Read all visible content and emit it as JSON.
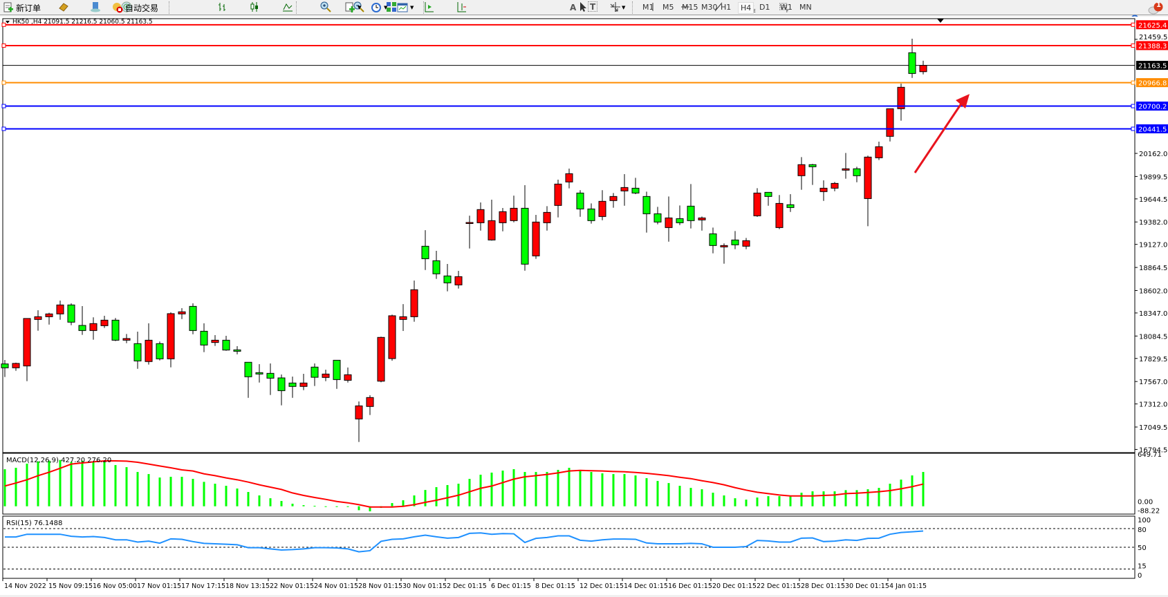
{
  "toolbar": {
    "new_order": "新订单",
    "auto_trading": "自动交易",
    "timeframes": [
      "M1",
      "M5",
      "M15",
      "M30",
      "H1",
      "H4",
      "D1",
      "W1",
      "MN"
    ],
    "active_timeframe": "H4",
    "notification_count": "1",
    "tools": {
      "text_label": "A",
      "text_box": "T"
    }
  },
  "chart": {
    "header": "HK50 ,H4  21091.5 21216.5 21060.5 21163.5",
    "colors": {
      "bull": "#ff0000",
      "bear": "#00ff00",
      "red_line": "#ff0000",
      "orange_line": "#ff8c00",
      "blue_line": "#0000ff"
    },
    "price_axis": [
      "21459.5",
      "20162.0",
      "19899.5",
      "19644.5",
      "19382.0",
      "19127.0",
      "18864.5",
      "18602.0",
      "18347.0",
      "18084.5",
      "17829.5",
      "17567.0",
      "17312.0",
      "17049.5",
      "16794.5"
    ],
    "price_axis_values": [
      21459.5,
      20162.0,
      19899.5,
      19644.5,
      19382.0,
      19127.0,
      18864.5,
      18602.0,
      18347.0,
      18084.5,
      17829.5,
      17567.0,
      17312.0,
      17049.5,
      16794.5
    ],
    "current_price": {
      "label": "21163.5",
      "value": 21163.5
    },
    "levels": [
      {
        "label": "21625.4",
        "value": 21625.4,
        "color": "#ff0000"
      },
      {
        "label": "21388.3",
        "value": 21388.3,
        "color": "#ff0000"
      },
      {
        "label": "20966.8",
        "value": 20966.8,
        "color": "#ff8c00"
      },
      {
        "label": "20700.2",
        "value": 20700.2,
        "color": "#0000ff"
      },
      {
        "label": "20441.5",
        "value": 20441.5,
        "color": "#0000ff"
      }
    ],
    "time_labels": [
      "14 Nov 2022",
      "15 Nov 09:15",
      "16 Nov 05:00",
      "17 Nov 01:15",
      "17 Nov 17:15",
      "18 Nov 13:15",
      "22 Nov 01:15",
      "24 Nov 01:15",
      "28 Nov 01:15",
      "30 Nov 01:15",
      "2 Dec 01:15",
      "6 Dec 01:15",
      "8 Dec 01:15",
      "12 Dec 01:15",
      "14 Dec 01:15",
      "16 Dec 01:15",
      "20 Dec 01:15",
      "22 Dec 01:15",
      "28 Dec 01:15",
      "30 Dec 01:15",
      "4 Jan 01:15"
    ],
    "candles_ohlc": [
      [
        17767,
        17812,
        17618,
        17723
      ],
      [
        17723,
        17781,
        17689,
        17773
      ],
      [
        17744,
        18284,
        17571,
        18284
      ],
      [
        18273,
        18378,
        18145,
        18304
      ],
      [
        18304,
        18349,
        18215,
        18336
      ],
      [
        18336,
        18488,
        18270,
        18438
      ],
      [
        18438,
        18456,
        18208,
        18242
      ],
      [
        18205,
        18425,
        18098,
        18147
      ],
      [
        18147,
        18297,
        18043,
        18226
      ],
      [
        18202,
        18315,
        18176,
        18265
      ],
      [
        18265,
        18289,
        18027,
        18037
      ],
      [
        18037,
        18108,
        18003,
        18056
      ],
      [
        17998,
        18134,
        17712,
        17801
      ],
      [
        17794,
        18229,
        17760,
        18037
      ],
      [
        17998,
        18022,
        17807,
        17825
      ],
      [
        17825,
        18354,
        17728,
        18339
      ],
      [
        18336,
        18401,
        18278,
        18360
      ],
      [
        18422,
        18456,
        18105,
        18147
      ],
      [
        18139,
        18229,
        17901,
        17982
      ],
      [
        18011,
        18095,
        17972,
        18037
      ],
      [
        18037,
        18087,
        17917,
        17925
      ],
      [
        17927,
        17969,
        17877,
        17911
      ],
      [
        17786,
        17786,
        17382,
        17621
      ],
      [
        17668,
        17765,
        17555,
        17652
      ],
      [
        17660,
        17773,
        17414,
        17605
      ],
      [
        17608,
        17647,
        17296,
        17463
      ],
      [
        17550,
        17623,
        17382,
        17511
      ],
      [
        17511,
        17655,
        17469,
        17550
      ],
      [
        17731,
        17773,
        17516,
        17615
      ],
      [
        17613,
        17702,
        17571,
        17652
      ],
      [
        17809,
        17809,
        17484,
        17589
      ],
      [
        17581,
        17726,
        17555,
        17644
      ],
      [
        17141,
        17340,
        16879,
        17290
      ],
      [
        17283,
        17411,
        17186,
        17385
      ],
      [
        17571,
        18077,
        17558,
        18069
      ],
      [
        17828,
        18328,
        17804,
        18315
      ],
      [
        18273,
        18448,
        18142,
        18304
      ],
      [
        18304,
        18716,
        18247,
        18611
      ],
      [
        19106,
        19289,
        18836,
        18964
      ],
      [
        18941,
        19054,
        18734,
        18792
      ],
      [
        18768,
        18904,
        18593,
        18689
      ],
      [
        18666,
        18826,
        18624,
        18760
      ],
      [
        19370,
        19454,
        19080,
        19376
      ],
      [
        19373,
        19604,
        19284,
        19523
      ],
      [
        19177,
        19635,
        19170,
        19397
      ],
      [
        19373,
        19541,
        19276,
        19499
      ],
      [
        19397,
        19682,
        19378,
        19538
      ],
      [
        19538,
        19800,
        18828,
        18902
      ],
      [
        18996,
        19462,
        18962,
        19381
      ],
      [
        19373,
        19562,
        19284,
        19491
      ],
      [
        19570,
        19863,
        19434,
        19813
      ],
      [
        19837,
        19989,
        19764,
        19931
      ],
      [
        19711,
        19743,
        19441,
        19530
      ],
      [
        19530,
        19593,
        19363,
        19397
      ],
      [
        19444,
        19743,
        19402,
        19617
      ],
      [
        19625,
        19711,
        19544,
        19672
      ],
      [
        19735,
        19926,
        19567,
        19774
      ],
      [
        19766,
        19884,
        19698,
        19711
      ],
      [
        19672,
        19727,
        19261,
        19475
      ],
      [
        19475,
        19554,
        19355,
        19381
      ],
      [
        19318,
        19672,
        19158,
        19428
      ],
      [
        19420,
        19570,
        19347,
        19373
      ],
      [
        19562,
        19813,
        19308,
        19397
      ],
      [
        19405,
        19444,
        19284,
        19428
      ],
      [
        19247,
        19318,
        19025,
        19114
      ],
      [
        19098,
        19138,
        18907,
        19114
      ],
      [
        19177,
        19279,
        19072,
        19122
      ],
      [
        19106,
        19200,
        19072,
        19169
      ],
      [
        19452,
        19766,
        19440,
        19711
      ],
      [
        19719,
        19719,
        19567,
        19672
      ],
      [
        19318,
        19688,
        19300,
        19593
      ],
      [
        19578,
        19698,
        19496,
        19546
      ],
      [
        19908,
        20120,
        19748,
        20034
      ],
      [
        20034,
        20042,
        19803,
        20010
      ],
      [
        19727,
        19855,
        19622,
        19766
      ],
      [
        19766,
        19837,
        19732,
        19821
      ],
      [
        19971,
        20167,
        19874,
        19987
      ],
      [
        19987,
        20010,
        19834,
        19908
      ],
      [
        19648,
        20136,
        19334,
        20120
      ],
      [
        20112,
        20296,
        20086,
        20238
      ],
      [
        20356,
        20670,
        20298,
        20670
      ],
      [
        20670,
        20956,
        20534,
        20914
      ],
      [
        21307,
        21467,
        21021,
        21071
      ],
      [
        21091.5,
        21216.5,
        21060.5,
        21163.5
      ]
    ]
  },
  "macd": {
    "label": "MACD(12,26,9) 427.20 276.20",
    "axis": [
      "649.71",
      "0.00",
      "-88.22"
    ],
    "histogram": [
      461,
      479,
      530,
      559,
      568,
      576,
      553,
      568,
      559,
      553,
      513,
      487,
      427,
      401,
      358,
      367,
      367,
      341,
      304,
      281,
      255,
      221,
      178,
      135,
      100,
      66,
      32,
      14,
      6,
      -3,
      -9,
      -9,
      -49,
      -63,
      -20,
      40,
      75,
      135,
      203,
      238,
      264,
      281,
      341,
      393,
      419,
      444,
      462,
      427,
      427,
      427,
      453,
      479,
      453,
      427,
      410,
      401,
      401,
      384,
      350,
      315,
      289,
      255,
      229,
      212,
      169,
      135,
      100,
      83,
      109,
      126,
      126,
      126,
      169,
      186,
      186,
      186,
      201,
      201,
      212,
      229,
      281,
      332,
      384,
      427.2
    ],
    "signal": [
      252,
      289,
      330,
      381,
      424,
      473,
      525,
      539,
      553,
      565,
      565,
      562,
      548,
      525,
      502,
      479,
      453,
      439,
      404,
      381,
      353,
      330,
      301,
      267,
      238,
      209,
      166,
      135,
      109,
      86,
      60,
      43,
      20,
      -9,
      -9,
      -9,
      0,
      20,
      49,
      75,
      106,
      138,
      181,
      224,
      252,
      295,
      338,
      367,
      381,
      396,
      416,
      439,
      447,
      442,
      439,
      433,
      430,
      421,
      410,
      396,
      381,
      361,
      344,
      318,
      295,
      267,
      232,
      201,
      175,
      158,
      140,
      129,
      129,
      129,
      135,
      140,
      158,
      163,
      172,
      181,
      195,
      218,
      244,
      276.2
    ],
    "hist_color": "#00ff00",
    "signal_color": "#ff0000"
  },
  "rsi": {
    "label": "RSI(15) 76.1488",
    "axis": [
      "100",
      "80",
      "50",
      "15",
      "0"
    ],
    "values": [
      66.5,
      66.5,
      70.9,
      70.9,
      70.9,
      70.9,
      67.6,
      66.5,
      67.2,
      65.7,
      62,
      62,
      58.4,
      59.9,
      56.6,
      63.5,
      62.8,
      59.1,
      56.2,
      55.5,
      54.8,
      54,
      49.3,
      49.3,
      47.4,
      45.6,
      46.3,
      47.4,
      49.3,
      49.3,
      48.9,
      47.4,
      42.7,
      44.5,
      59.5,
      62.8,
      63.5,
      66.8,
      69.4,
      66.8,
      64.6,
      65.7,
      72.3,
      73,
      70.9,
      72,
      71.6,
      57.7,
      64.3,
      65.7,
      68.3,
      68.3,
      61.3,
      59.9,
      62,
      63.2,
      63.2,
      62.8,
      56.9,
      55.5,
      55.5,
      55.5,
      56.2,
      55.5,
      50,
      50,
      50,
      51.1,
      61,
      60.2,
      58.4,
      58.4,
      64.6,
      65,
      59.1,
      59.9,
      62,
      61,
      64.3,
      64.6,
      70.9,
      73.8,
      74.9,
      76.1488
    ],
    "line_color": "#1e90ff"
  }
}
